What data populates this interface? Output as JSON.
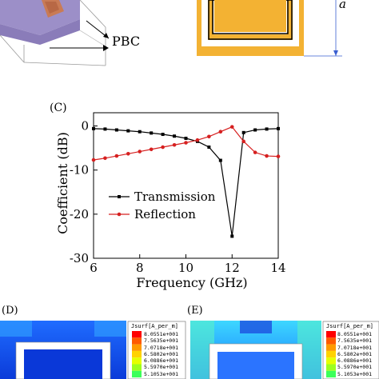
{
  "top": {
    "pbc_label": "PBC",
    "dimension_label": "a"
  },
  "panel_c": {
    "label": "(C)"
  },
  "chart_data": {
    "type": "line",
    "title": "",
    "xlabel": "Frequency (GHz)",
    "ylabel": "Coefficient (dB)",
    "xlim": [
      6,
      14
    ],
    "ylim": [
      -30,
      3
    ],
    "xticks": [
      6,
      8,
      10,
      12,
      14
    ],
    "yticks": [
      0,
      -10,
      -20,
      -30
    ],
    "grid": false,
    "legend": "center-left",
    "series": [
      {
        "name": "Transmission",
        "color": "#000000",
        "marker": "square",
        "x": [
          6,
          6.5,
          7,
          7.5,
          8,
          8.5,
          9,
          9.5,
          10,
          10.5,
          11,
          11.5,
          12,
          12.5,
          13,
          13.5,
          14
        ],
        "y": [
          -0.6,
          -0.7,
          -0.9,
          -1.1,
          -1.3,
          -1.6,
          -1.9,
          -2.3,
          -2.8,
          -3.5,
          -4.8,
          -7.8,
          -25,
          -1.5,
          -0.9,
          -0.7,
          -0.6
        ]
      },
      {
        "name": "Reflection",
        "color": "#d62020",
        "marker": "circle",
        "x": [
          6,
          6.5,
          7,
          7.5,
          8,
          8.5,
          9,
          9.5,
          10,
          10.5,
          11,
          11.5,
          12,
          12.5,
          13,
          13.5,
          14
        ],
        "y": [
          -7.7,
          -7.3,
          -6.8,
          -6.3,
          -5.8,
          -5.3,
          -4.8,
          -4.3,
          -3.8,
          -3.2,
          -2.4,
          -1.3,
          -0.2,
          -3.5,
          -6.0,
          -6.8,
          -6.9
        ]
      }
    ]
  },
  "panel_d": {
    "label": "(D)",
    "legend_title": "Jsurf[A_per_m]",
    "legend_values": [
      "8.0551e+001",
      "7.5635e+001",
      "7.0718e+001",
      "6.5802e+001",
      "6.0886e+001",
      "5.5970e+001",
      "5.1053e+001"
    ]
  },
  "panel_e": {
    "label": "(E)",
    "legend_title": "Jsurf[A_per_m]",
    "legend_values": [
      "8.0551e+001",
      "7.5635e+001",
      "7.0718e+001",
      "6.5802e+001",
      "6.0886e+001",
      "5.5970e+001",
      "5.1053e+001"
    ]
  },
  "legend_colors": [
    "#ff0000",
    "#ff5a00",
    "#ff9a00",
    "#ffd200",
    "#e6ff00",
    "#9cff1e",
    "#3cff5a"
  ]
}
